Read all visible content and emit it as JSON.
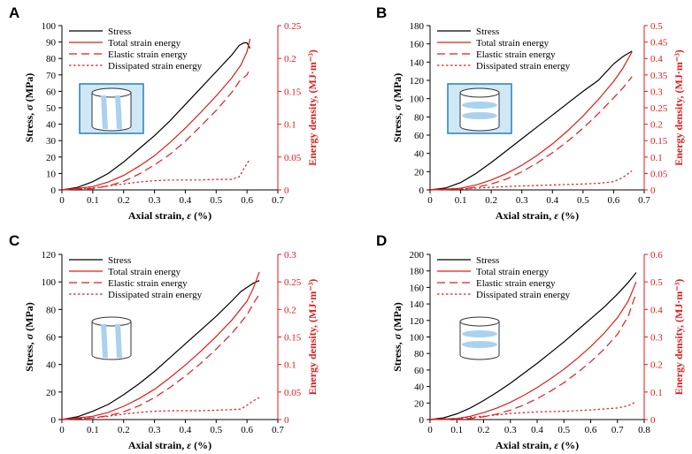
{
  "colors": {
    "stress": "#000000",
    "energy": "#e31a1c",
    "inset_fill": "#cfe8f6",
    "inset_glyph": "#a8d2ee",
    "inset_border": "#2a7fb8"
  },
  "chart_data": [
    {
      "panel_label": "A",
      "type": "line",
      "xlabel_prefix": "Axial strain, ",
      "xlabel_sym": "ε",
      "xlabel_suffix": " (%)",
      "ylabel_prefix": "Stress, ",
      "ylabel_sym": "σ",
      "ylabel_suffix": " (MPa)",
      "y2label": "Energy density, (MJ·m⁻³)",
      "xlim": [
        0,
        0.7
      ],
      "xticks": [
        0,
        0.1,
        0.2,
        0.3,
        0.4,
        0.5,
        0.6,
        0.7
      ],
      "xtick_labels": [
        "0",
        "0.1",
        "0.2",
        "0.3",
        "0.4",
        "0.5",
        "0.6",
        "0.7"
      ],
      "ylim": [
        0,
        100
      ],
      "yticks": [
        0,
        10,
        20,
        30,
        40,
        50,
        60,
        70,
        80,
        90,
        100
      ],
      "y2lim": [
        0,
        0.25
      ],
      "y2ticks": [
        0,
        0.05,
        0.1,
        0.15,
        0.2,
        0.25
      ],
      "inset": {
        "shape": "vertical-fractures",
        "boxed": true
      },
      "legend": [
        "Stress",
        "Total strain energy",
        "Elastic strain energy",
        "Dissipated strain energy"
      ],
      "series": [
        {
          "name": "Stress",
          "axis": "left",
          "style": "solid",
          "color": "#000000",
          "x": [
            0,
            0.05,
            0.1,
            0.15,
            0.2,
            0.25,
            0.3,
            0.35,
            0.4,
            0.45,
            0.5,
            0.55,
            0.575,
            0.59,
            0.6,
            0.61
          ],
          "y": [
            0,
            1.5,
            5,
            10,
            17,
            25,
            33,
            42,
            52,
            62,
            72,
            82,
            88,
            89.5,
            89.5,
            86
          ]
        },
        {
          "name": "Total strain energy",
          "axis": "right",
          "style": "solid",
          "color": "#e31a1c",
          "x": [
            0,
            0.1,
            0.15,
            0.2,
            0.25,
            0.3,
            0.35,
            0.4,
            0.45,
            0.5,
            0.55,
            0.58,
            0.6,
            0.61
          ],
          "y": [
            0,
            0.005,
            0.012,
            0.022,
            0.036,
            0.052,
            0.072,
            0.094,
            0.118,
            0.143,
            0.17,
            0.19,
            0.21,
            0.23
          ]
        },
        {
          "name": "Elastic strain energy",
          "axis": "right",
          "style": "dashed",
          "color": "#e31a1c",
          "x": [
            0,
            0.1,
            0.15,
            0.2,
            0.25,
            0.3,
            0.35,
            0.4,
            0.45,
            0.5,
            0.55,
            0.575,
            0.6,
            0.61
          ],
          "y": [
            0,
            0.002,
            0.006,
            0.013,
            0.024,
            0.038,
            0.054,
            0.074,
            0.097,
            0.121,
            0.148,
            0.165,
            0.175,
            0.185
          ]
        },
        {
          "name": "Dissipated strain energy",
          "axis": "right",
          "style": "dotted",
          "color": "#e31a1c",
          "x": [
            0,
            0.1,
            0.15,
            0.2,
            0.25,
            0.3,
            0.35,
            0.4,
            0.45,
            0.5,
            0.55,
            0.575,
            0.6,
            0.61
          ],
          "y": [
            0,
            0.003,
            0.006,
            0.009,
            0.012,
            0.014,
            0.015,
            0.015,
            0.015,
            0.016,
            0.016,
            0.02,
            0.04,
            0.047
          ]
        }
      ]
    },
    {
      "panel_label": "B",
      "type": "line",
      "xlabel_prefix": "Axial strain, ",
      "xlabel_sym": "ε",
      "xlabel_suffix": " (%)",
      "ylabel_prefix": "Stress, ",
      "ylabel_sym": "σ",
      "ylabel_suffix": " (MPa)",
      "y2label": "Energy density, (MJ·m⁻³)",
      "xlim": [
        0,
        0.7
      ],
      "xticks": [
        0,
        0.1,
        0.2,
        0.3,
        0.4,
        0.5,
        0.6,
        0.7
      ],
      "xtick_labels": [
        "0",
        "0.1",
        "0.2",
        "0.3",
        "0.4",
        "0.5",
        "0.6",
        "0.7"
      ],
      "ylim": [
        0,
        180
      ],
      "yticks": [
        0,
        20,
        40,
        60,
        80,
        100,
        120,
        140,
        160,
        180
      ],
      "y2lim": [
        0,
        0.5
      ],
      "y2ticks": [
        0,
        0.05,
        0.1,
        0.15,
        0.2,
        0.25,
        0.3,
        0.35,
        0.4,
        0.45,
        0.5
      ],
      "inset": {
        "shape": "horizontal-fractures",
        "boxed": true
      },
      "legend": [
        "Stress",
        "Total strain energy",
        "Elastic strain energy",
        "Dissipated strain energy"
      ],
      "series": [
        {
          "name": "Stress",
          "axis": "left",
          "style": "solid",
          "color": "#000000",
          "x": [
            0,
            0.05,
            0.1,
            0.15,
            0.2,
            0.25,
            0.3,
            0.35,
            0.4,
            0.45,
            0.5,
            0.55,
            0.6,
            0.63,
            0.66
          ],
          "y": [
            0,
            2,
            8,
            18,
            30,
            43,
            56,
            69,
            82,
            95,
            108,
            120,
            138,
            146,
            152
          ]
        },
        {
          "name": "Total strain energy",
          "axis": "right",
          "style": "solid",
          "color": "#e31a1c",
          "x": [
            0,
            0.1,
            0.15,
            0.2,
            0.25,
            0.3,
            0.35,
            0.4,
            0.45,
            0.5,
            0.55,
            0.6,
            0.63,
            0.66
          ],
          "y": [
            0,
            0.005,
            0.015,
            0.03,
            0.05,
            0.075,
            0.105,
            0.14,
            0.18,
            0.225,
            0.275,
            0.33,
            0.37,
            0.42
          ]
        },
        {
          "name": "Elastic strain energy",
          "axis": "right",
          "style": "dashed",
          "color": "#e31a1c",
          "x": [
            0,
            0.1,
            0.15,
            0.2,
            0.25,
            0.3,
            0.35,
            0.4,
            0.45,
            0.5,
            0.55,
            0.6,
            0.63,
            0.66
          ],
          "y": [
            0,
            0.002,
            0.008,
            0.018,
            0.033,
            0.055,
            0.082,
            0.113,
            0.148,
            0.188,
            0.232,
            0.28,
            0.31,
            0.345
          ]
        },
        {
          "name": "Dissipated strain energy",
          "axis": "right",
          "style": "dotted",
          "color": "#e31a1c",
          "x": [
            0,
            0.1,
            0.2,
            0.3,
            0.4,
            0.5,
            0.55,
            0.6,
            0.63,
            0.66
          ],
          "y": [
            0,
            0.003,
            0.008,
            0.012,
            0.015,
            0.018,
            0.02,
            0.025,
            0.038,
            0.058
          ]
        }
      ]
    },
    {
      "panel_label": "C",
      "type": "line",
      "xlabel_prefix": "Axial strain, ",
      "xlabel_sym": "ε",
      "xlabel_suffix": " (%)",
      "ylabel_prefix": "Stress, ",
      "ylabel_sym": "σ",
      "ylabel_suffix": " (MPa)",
      "y2label": "Energy density, (MJ·m⁻³)",
      "xlim": [
        0,
        0.7
      ],
      "xticks": [
        0,
        0.1,
        0.2,
        0.3,
        0.4,
        0.5,
        0.6,
        0.7
      ],
      "xtick_labels": [
        "0",
        "0.1",
        "0.2",
        "0.3",
        "0.4",
        "0.5",
        "0.6",
        "0.7"
      ],
      "ylim": [
        0,
        120
      ],
      "yticks": [
        0,
        20,
        40,
        60,
        80,
        100,
        120
      ],
      "y2lim": [
        0,
        0.3
      ],
      "y2ticks": [
        0,
        0.05,
        0.1,
        0.15,
        0.2,
        0.25,
        0.3
      ],
      "inset": {
        "shape": "vertical-fractures",
        "boxed": false
      },
      "legend": [
        "Stress",
        "Total strain energy",
        "Elastic strain energy",
        "Dissipated strain energy"
      ],
      "series": [
        {
          "name": "Stress",
          "axis": "left",
          "style": "solid",
          "color": "#000000",
          "x": [
            0,
            0.05,
            0.1,
            0.15,
            0.2,
            0.25,
            0.3,
            0.35,
            0.4,
            0.45,
            0.5,
            0.55,
            0.58,
            0.6,
            0.62,
            0.64
          ],
          "y": [
            0,
            2,
            6,
            11,
            18,
            26,
            35,
            45,
            55,
            65,
            75,
            86,
            93,
            96,
            99,
            101
          ]
        },
        {
          "name": "Total strain energy",
          "axis": "right",
          "style": "solid",
          "color": "#e31a1c",
          "x": [
            0,
            0.1,
            0.15,
            0.2,
            0.25,
            0.3,
            0.35,
            0.4,
            0.45,
            0.5,
            0.55,
            0.6,
            0.62,
            0.64
          ],
          "y": [
            0,
            0.006,
            0.013,
            0.024,
            0.038,
            0.055,
            0.076,
            0.099,
            0.124,
            0.151,
            0.18,
            0.215,
            0.238,
            0.268
          ]
        },
        {
          "name": "Elastic strain energy",
          "axis": "right",
          "style": "dashed",
          "color": "#e31a1c",
          "x": [
            0,
            0.1,
            0.15,
            0.2,
            0.25,
            0.3,
            0.35,
            0.4,
            0.45,
            0.5,
            0.55,
            0.6,
            0.62,
            0.64
          ],
          "y": [
            0,
            0.003,
            0.007,
            0.014,
            0.025,
            0.04,
            0.058,
            0.079,
            0.102,
            0.128,
            0.156,
            0.19,
            0.21,
            0.228
          ]
        },
        {
          "name": "Dissipated strain energy",
          "axis": "right",
          "style": "dotted",
          "color": "#e31a1c",
          "x": [
            0,
            0.1,
            0.15,
            0.2,
            0.25,
            0.3,
            0.35,
            0.4,
            0.45,
            0.5,
            0.55,
            0.58,
            0.6,
            0.62,
            0.64
          ],
          "y": [
            0,
            0.003,
            0.006,
            0.01,
            0.013,
            0.015,
            0.016,
            0.016,
            0.016,
            0.017,
            0.018,
            0.019,
            0.026,
            0.034,
            0.04
          ]
        }
      ]
    },
    {
      "panel_label": "D",
      "type": "line",
      "xlabel_prefix": "Axial strain, ",
      "xlabel_sym": "ε",
      "xlabel_suffix": " (%)",
      "ylabel_prefix": "Stress, ",
      "ylabel_sym": "σ",
      "ylabel_suffix": " (MPa)",
      "y2label": "Energy density, (MJ·m⁻³)",
      "xlim": [
        0,
        0.8
      ],
      "xticks": [
        0,
        0.1,
        0.2,
        0.3,
        0.4,
        0.5,
        0.6,
        0.7,
        0.8
      ],
      "xtick_labels": [
        "0",
        "0.1",
        "0.2",
        "0.3",
        "0.4",
        "0.5",
        "0.6",
        "0.7",
        "0.8"
      ],
      "ylim": [
        0,
        200
      ],
      "yticks": [
        0,
        20,
        40,
        60,
        80,
        100,
        120,
        140,
        160,
        180,
        200
      ],
      "y2lim": [
        0,
        0.6
      ],
      "y2ticks": [
        0,
        0.1,
        0.2,
        0.3,
        0.4,
        0.5,
        0.6
      ],
      "inset": {
        "shape": "horizontal-fractures",
        "boxed": false
      },
      "legend": [
        "Stress",
        "Total strain energy",
        "Elastic strain energy",
        "Dissipated strain energy"
      ],
      "series": [
        {
          "name": "Stress",
          "axis": "left",
          "style": "solid",
          "color": "#000000",
          "x": [
            0,
            0.05,
            0.1,
            0.15,
            0.2,
            0.25,
            0.3,
            0.35,
            0.4,
            0.45,
            0.5,
            0.55,
            0.6,
            0.65,
            0.7,
            0.74,
            0.77
          ],
          "y": [
            0,
            2,
            7,
            14,
            23,
            33,
            44,
            56,
            68,
            81,
            94,
            108,
            122,
            136,
            152,
            166,
            178
          ]
        },
        {
          "name": "Total strain energy",
          "axis": "right",
          "style": "solid",
          "color": "#e31a1c",
          "x": [
            0,
            0.1,
            0.15,
            0.2,
            0.25,
            0.3,
            0.35,
            0.4,
            0.45,
            0.5,
            0.55,
            0.6,
            0.65,
            0.7,
            0.74,
            0.77
          ],
          "y": [
            0,
            0.004,
            0.012,
            0.025,
            0.042,
            0.063,
            0.088,
            0.116,
            0.148,
            0.183,
            0.222,
            0.265,
            0.313,
            0.37,
            0.43,
            0.5
          ]
        },
        {
          "name": "Elastic strain energy",
          "axis": "right",
          "style": "dashed",
          "color": "#e31a1c",
          "x": [
            0,
            0.1,
            0.15,
            0.2,
            0.25,
            0.3,
            0.35,
            0.4,
            0.45,
            0.5,
            0.55,
            0.6,
            0.65,
            0.7,
            0.74,
            0.77
          ],
          "y": [
            0,
            0.001,
            0.004,
            0.01,
            0.02,
            0.034,
            0.053,
            0.076,
            0.103,
            0.134,
            0.17,
            0.21,
            0.255,
            0.31,
            0.375,
            0.46
          ]
        },
        {
          "name": "Dissipated strain energy",
          "axis": "right",
          "style": "dotted",
          "color": "#e31a1c",
          "x": [
            0,
            0.1,
            0.2,
            0.3,
            0.4,
            0.5,
            0.6,
            0.7,
            0.74,
            0.77
          ],
          "y": [
            0,
            0.004,
            0.012,
            0.022,
            0.028,
            0.03,
            0.035,
            0.042,
            0.05,
            0.065
          ]
        }
      ]
    }
  ]
}
